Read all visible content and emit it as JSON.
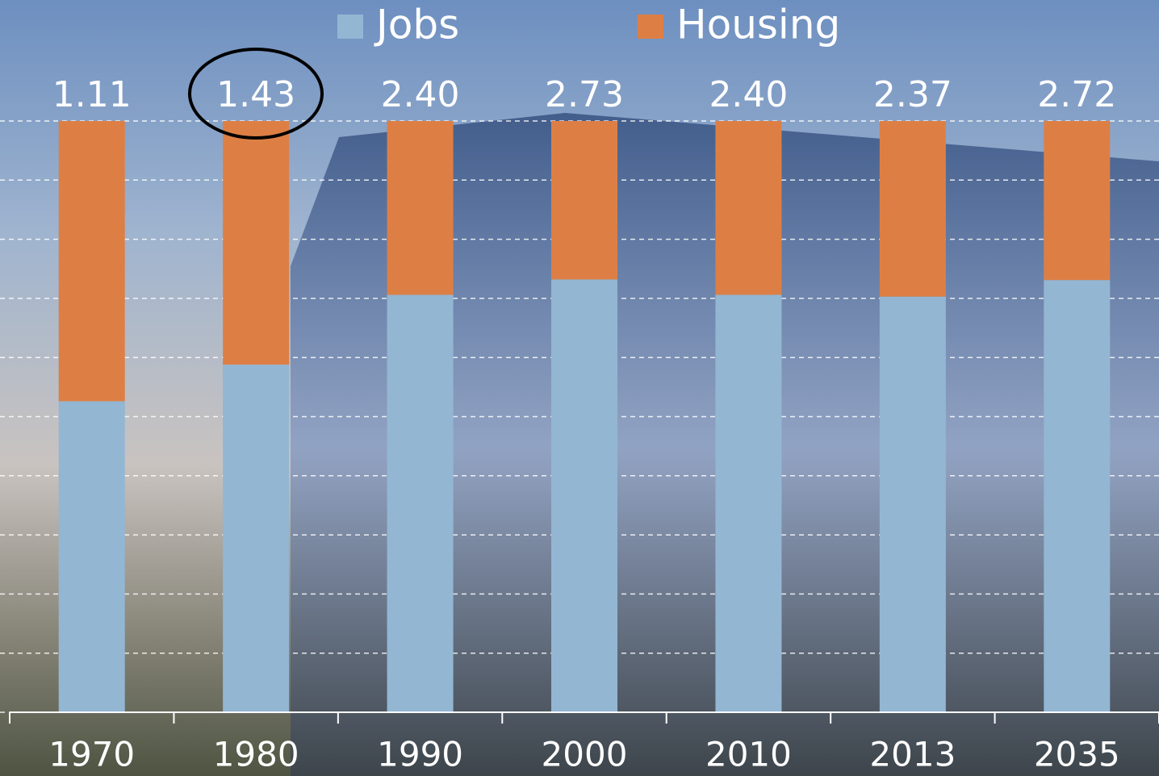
{
  "chart_data": {
    "type": "stacked_bar",
    "categories": [
      "1970",
      "1980",
      "1990",
      "2000",
      "2010",
      "2013",
      "2035"
    ],
    "series": [
      {
        "name": "Jobs",
        "color": "#93b6d3",
        "values": [
          52.6,
          58.8,
          70.6,
          73.2,
          70.6,
          70.3,
          73.1
        ]
      },
      {
        "name": "Housing",
        "color": "#dd7f45",
        "values": [
          47.4,
          41.2,
          29.4,
          26.8,
          29.4,
          29.7,
          26.9
        ]
      }
    ],
    "ratio_labels": [
      "1.11",
      "1.43",
      "2.40",
      "2.73",
      "2.40",
      "2.37",
      "2.72"
    ],
    "ylim": [
      0,
      100
    ],
    "yticks": [
      0,
      10,
      20,
      30,
      40,
      50,
      60,
      70,
      80,
      90,
      100
    ],
    "grid": true
  }
}
